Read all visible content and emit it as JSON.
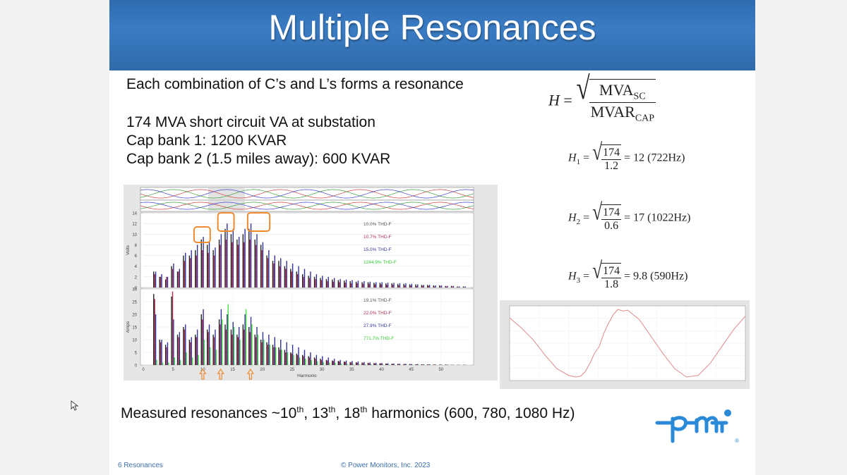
{
  "slide": {
    "title": "Multiple Resonances",
    "intro": "Each combination of C’s and L’s forms a resonance",
    "lines": [
      "174 MVA short circuit VA at substation",
      "Cap bank 1:  1200 KVAR",
      "Cap bank 2 (1.5 miles away):  600 KVAR"
    ],
    "conclusion_parts": [
      "Measured resonances ~10",
      "th",
      ", 13",
      "th",
      ", 18",
      "th",
      " harmonics (600, 780, 1080 Hz)"
    ],
    "footer_left": "6 Resonances",
    "footer_center": "© Power Monitors, Inc. 2023"
  },
  "formulas": {
    "main": {
      "lhs": "H",
      "num": "MVA",
      "num_sub": "SC",
      "den": "MVAR",
      "den_sub": "CAP"
    },
    "items": [
      {
        "lhs": "H",
        "sub": "1",
        "num": "174",
        "den": "1.2",
        "result": "= 12  (722Hz)"
      },
      {
        "lhs": "H",
        "sub": "2",
        "num": "174",
        "den": "0.6",
        "result": "= 17  (1022Hz)"
      },
      {
        "lhs": "H",
        "sub": "3",
        "num": "174",
        "den": "1.8",
        "result": "= 9.8  (590Hz)"
      }
    ]
  },
  "chart_data": [
    {
      "type": "bar",
      "xlabel": "Harmonic",
      "ylabel": "Volts",
      "xlim": [
        0,
        55
      ],
      "ylim": [
        0,
        14
      ],
      "x_ticks": [
        "0",
        "5",
        "10",
        "15",
        "20",
        "25",
        "30",
        "35",
        "40",
        "45",
        "50"
      ],
      "y_ticks": [
        "0",
        "2",
        "4",
        "6",
        "8",
        "10",
        "12",
        "14"
      ],
      "legend": [
        {
          "label": "10.0% THD-F",
          "color": "#555555"
        },
        {
          "label": "10.7% THD-F",
          "color": "#b03050"
        },
        {
          "label": "15.0% THD-F",
          "color": "#333399"
        },
        {
          "label": "1244.9% THD-F",
          "color": "#33cc33"
        }
      ],
      "series": [
        {
          "name": "10.0% THD-F",
          "color": "#222222",
          "values": [
            0,
            3,
            2,
            1.5,
            4,
            3,
            6,
            6,
            7,
            9,
            8,
            7,
            9,
            11,
            10,
            9,
            10,
            11,
            9,
            8,
            6,
            5,
            5,
            4,
            3.5,
            3,
            2.5,
            2.2,
            2,
            1.8,
            1.6,
            1.5,
            1.4,
            1.3,
            1.2,
            1.1,
            1,
            1,
            0.9,
            0.9,
            0.8,
            0.8,
            0.7,
            0.7,
            0.6,
            0.6,
            0.5,
            0.5,
            0.4,
            0.4,
            0.3,
            0.3,
            0.2,
            0.2
          ]
        },
        {
          "name": "10.7% THD-F",
          "color": "#b03050",
          "values": [
            0,
            2.5,
            2,
            2,
            3.5,
            3,
            5,
            5.5,
            6,
            7,
            6.5,
            6,
            8,
            9,
            8.5,
            8,
            8.5,
            9,
            8,
            7,
            5.5,
            4.5,
            4,
            3.5,
            3,
            2.5,
            2,
            1.8,
            1.6,
            1.4,
            1.2,
            1.1,
            1,
            0.9,
            0.8,
            0.8,
            0.7,
            0.7,
            0.6,
            0.6,
            0.5,
            0.5,
            0.4,
            0.4,
            0.4,
            0.3,
            0.3,
            0.3,
            0.2,
            0.2,
            0.2,
            0.2,
            0.1,
            0.1
          ]
        },
        {
          "name": "15.0% THD-F",
          "color": "#333399",
          "values": [
            0,
            3,
            2.5,
            2,
            4.5,
            3.5,
            6.5,
            7,
            8,
            9.5,
            8.5,
            7.5,
            10,
            12,
            11,
            9.5,
            11,
            12,
            10,
            8.5,
            7,
            6,
            5.5,
            5,
            4.5,
            4,
            3.5,
            3,
            2.5,
            2.2,
            2,
            1.8,
            1.6,
            1.5,
            1.4,
            1.3,
            1.2,
            1.1,
            1,
            1,
            0.9,
            0.9,
            0.8,
            0.8,
            0.7,
            0.6,
            0.5,
            0.5,
            0.4,
            0.4,
            0.3,
            0.3,
            0.2,
            0.2
          ]
        },
        {
          "name": "1244.9% THD-F",
          "color": "#33cc33",
          "values": [
            0,
            0,
            0,
            0,
            0,
            0,
            0,
            0,
            0,
            0,
            0,
            0,
            0,
            0,
            0,
            0,
            0,
            0,
            0,
            0,
            0,
            0,
            0,
            0,
            0,
            0,
            0,
            0,
            0,
            0,
            0,
            0,
            0,
            0,
            0,
            0,
            0,
            0,
            0,
            0,
            0,
            0,
            0,
            0,
            0,
            0,
            0,
            0,
            0,
            0,
            0,
            0,
            0,
            0
          ]
        }
      ]
    },
    {
      "type": "bar",
      "xlabel": "Harmonic",
      "ylabel": "Amps",
      "xlim": [
        0,
        55
      ],
      "ylim": [
        0,
        30
      ],
      "x_ticks": [
        "0",
        "5",
        "10",
        "15",
        "20",
        "25",
        "30",
        "35",
        "40",
        "45",
        "50"
      ],
      "y_ticks": [
        "0",
        "5",
        "10",
        "15",
        "20",
        "25",
        "30"
      ],
      "legend": [
        {
          "label": "19.1% THD-F",
          "color": "#555555"
        },
        {
          "label": "22.0% THD-F",
          "color": "#b03050"
        },
        {
          "label": "27.9% THD-F",
          "color": "#333399"
        },
        {
          "label": "771.7% THD-F",
          "color": "#33cc33"
        }
      ],
      "series": [
        {
          "name": "19.1% THD-F",
          "color": "#222222",
          "values": [
            0,
            28,
            10,
            8,
            27,
            12,
            15,
            10,
            12,
            20,
            14,
            12,
            18,
            16,
            14,
            12,
            16,
            15,
            12,
            10,
            9,
            8,
            7,
            6,
            5,
            4.5,
            4,
            3.5,
            3,
            2.5,
            2,
            1.8,
            1.6,
            1.4,
            1.2,
            1.1,
            1,
            0.9,
            0.8,
            0.7,
            0.6,
            0.5,
            0.5,
            0.4,
            0.4,
            0.3,
            0.3,
            0.3,
            0.2,
            0.2,
            0.2,
            0.1,
            0.1,
            0.1
          ]
        },
        {
          "name": "22.0% THD-F",
          "color": "#b03050",
          "values": [
            0,
            26,
            9,
            7,
            29,
            11,
            14,
            9,
            11,
            18,
            13,
            11,
            16,
            14,
            12,
            11,
            14,
            13,
            11,
            9,
            8,
            7,
            6,
            5,
            4.5,
            4,
            3.5,
            3,
            2.5,
            2,
            1.8,
            1.6,
            1.4,
            1.2,
            1,
            0.9,
            0.8,
            0.7,
            0.6,
            0.6,
            0.5,
            0.5,
            0.4,
            0.4,
            0.3,
            0.3,
            0.2,
            0.2,
            0.2,
            0.1,
            0.1,
            0.1,
            0.1,
            0.1
          ]
        },
        {
          "name": "27.9% THD-F",
          "color": "#333399",
          "values": [
            0,
            20,
            10,
            9,
            18,
            13,
            16,
            11,
            14,
            22,
            16,
            14,
            22,
            20,
            17,
            15,
            20,
            19,
            15,
            13,
            12,
            11,
            10,
            9,
            8,
            7,
            6,
            5,
            4,
            3.5,
            3,
            2.5,
            2,
            1.8,
            1.6,
            1.4,
            1.2,
            1,
            0.9,
            0.8,
            0.7,
            0.6,
            0.5,
            0.5,
            0.4,
            0.4,
            0.3,
            0.3,
            0.2,
            0.2,
            0.2,
            0.1,
            0.1,
            0.1
          ]
        },
        {
          "name": "771.7% THD-F",
          "color": "#44dd44",
          "values": [
            0,
            2,
            1,
            1,
            3,
            2,
            5,
            3,
            4,
            10,
            7,
            6,
            18,
            24,
            15,
            10,
            22,
            16,
            12,
            10,
            8,
            7,
            6,
            5,
            4,
            3,
            2.5,
            2,
            1.5,
            1.2,
            1,
            0.8,
            0.6,
            0.5,
            0.4,
            0.4,
            0.3,
            0.3,
            0.2,
            0.2,
            0.2,
            0.1,
            0.1,
            0.1,
            0.1,
            0.1,
            0.1,
            0.1,
            0,
            0,
            0,
            0,
            0,
            0
          ]
        }
      ]
    },
    {
      "type": "line",
      "series": [
        {
          "color": "#e08a8a",
          "x": [
            0,
            0.05,
            0.1,
            0.15,
            0.2,
            0.25,
            0.28,
            0.3,
            0.32,
            0.34,
            0.36,
            0.38,
            0.4,
            0.42,
            0.44,
            0.46,
            0.48,
            0.5,
            0.55,
            0.6,
            0.65,
            0.7,
            0.75,
            0.8,
            0.85,
            0.9,
            0.95,
            1
          ],
          "y": [
            0.75,
            0.45,
            0.1,
            -0.35,
            -0.75,
            -0.95,
            -1,
            -0.98,
            -0.85,
            -0.6,
            -0.3,
            -0.1,
            0.3,
            0.6,
            0.85,
            1,
            0.95,
            0.98,
            0.7,
            0.2,
            -0.3,
            -0.75,
            -1,
            -0.95,
            -0.6,
            -0.1,
            0.4,
            0.8
          ]
        }
      ]
    }
  ]
}
